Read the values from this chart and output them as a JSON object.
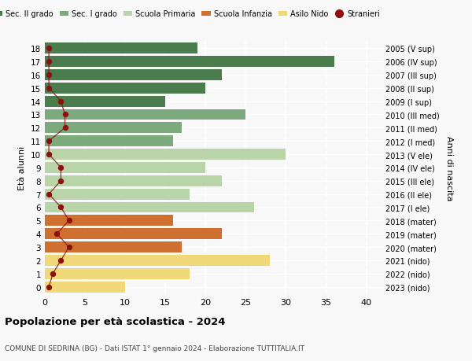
{
  "ages": [
    18,
    17,
    16,
    15,
    14,
    13,
    12,
    11,
    10,
    9,
    8,
    7,
    6,
    5,
    4,
    3,
    2,
    1,
    0
  ],
  "bar_values": [
    19,
    36,
    22,
    20,
    15,
    25,
    17,
    16,
    30,
    20,
    22,
    18,
    26,
    16,
    22,
    17,
    28,
    18,
    10
  ],
  "stranieri_values": [
    0.5,
    0.5,
    0.5,
    0.5,
    2.0,
    2.5,
    2.5,
    0.5,
    0.5,
    2.0,
    2.0,
    0.5,
    2.0,
    3.0,
    1.5,
    3.0,
    2.0,
    1.0,
    0.5
  ],
  "right_labels": [
    "2005 (V sup)",
    "2006 (IV sup)",
    "2007 (III sup)",
    "2008 (II sup)",
    "2009 (I sup)",
    "2010 (III med)",
    "2011 (II med)",
    "2012 (I med)",
    "2013 (V ele)",
    "2014 (IV ele)",
    "2015 (III ele)",
    "2016 (II ele)",
    "2017 (I ele)",
    "2018 (mater)",
    "2019 (mater)",
    "2020 (mater)",
    "2021 (nido)",
    "2022 (nido)",
    "2023 (nido)"
  ],
  "colors": {
    "sec_II": "#4a7c4e",
    "sec_I": "#7daa7d",
    "primaria": "#b8d4a8",
    "infanzia": "#d07030",
    "nido": "#f0d878",
    "stranieri": "#8b1010"
  },
  "legend_labels": [
    "Sec. II grado",
    "Sec. I grado",
    "Scuola Primaria",
    "Scuola Infanzia",
    "Asilo Nido",
    "Stranieri"
  ],
  "legend_colors": [
    "#4a7c4e",
    "#7daa7d",
    "#b8d4a8",
    "#d07030",
    "#f0d878",
    "#8b1010"
  ],
  "title": "Popolazione per età scolastica - 2024",
  "subtitle": "COMUNE DI SEDRINA (BG) - Dati ISTAT 1° gennaio 2024 - Elaborazione TUTTITALIA.IT",
  "ylabel_left": "Età alunni",
  "ylabel_right": "Anni di nascita",
  "xlim": [
    0,
    42
  ],
  "background_color": "#f8f8f8"
}
